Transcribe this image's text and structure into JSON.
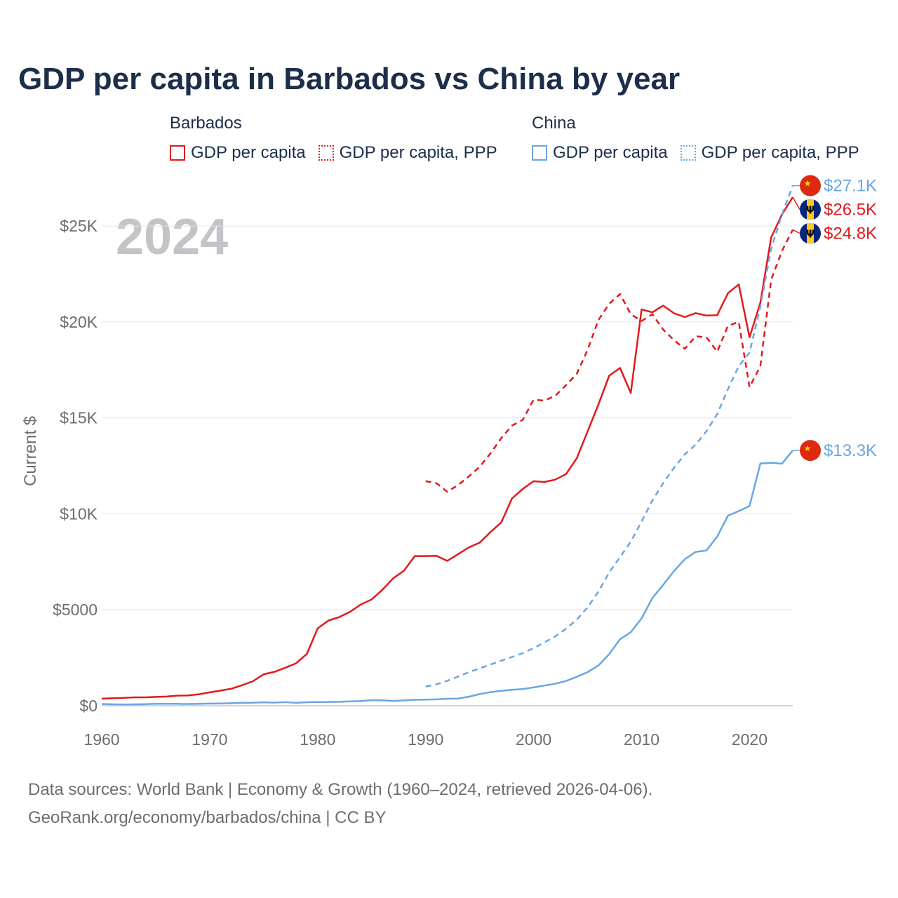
{
  "title": "GDP per capita in Barbados vs China by year",
  "legend": {
    "groups": [
      {
        "name": "Barbados",
        "items": [
          {
            "label": "GDP per capita",
            "style": "solid",
            "color": "#e3191c"
          },
          {
            "label": "GDP per capita, PPP",
            "style": "dotted",
            "color": "#e3191c"
          }
        ]
      },
      {
        "name": "China",
        "items": [
          {
            "label": "GDP per capita",
            "style": "solid",
            "color": "#6aa6e2"
          },
          {
            "label": "GDP per capita, PPP",
            "style": "dotted",
            "color": "#6aa6e2"
          }
        ]
      }
    ]
  },
  "chart_data": {
    "type": "line",
    "title": "GDP per capita in Barbados vs China by year",
    "year_label": "2024",
    "xlabel": "",
    "ylabel": "Current $",
    "xlim": [
      1960,
      2024
    ],
    "ylim": [
      0,
      28000
    ],
    "x_ticks": [
      1960,
      1970,
      1980,
      1990,
      2000,
      2010,
      2020
    ],
    "y_ticks": [
      {
        "value": 0,
        "label": "$0"
      },
      {
        "value": 5000,
        "label": "$5000"
      },
      {
        "value": 10000,
        "label": "$10K"
      },
      {
        "value": 15000,
        "label": "$15K"
      },
      {
        "value": 20000,
        "label": "$20K"
      },
      {
        "value": 25000,
        "label": "$25K"
      }
    ],
    "grid": true,
    "series": [
      {
        "name": "Barbados GDP per capita",
        "country": "Barbados",
        "dash": false,
        "color": "#e3191c",
        "start_year": 1960,
        "end_label": "$26.5K",
        "values": [
          370,
          390,
          410,
          440,
          440,
          460,
          480,
          530,
          540,
          600,
          700,
          790,
          890,
          1070,
          1280,
          1640,
          1770,
          1980,
          2210,
          2700,
          4030,
          4440,
          4620,
          4900,
          5280,
          5540,
          6050,
          6640,
          7040,
          7800,
          7800,
          7810,
          7550,
          7900,
          8250,
          8500,
          9050,
          9550,
          10800,
          11300,
          11700,
          11660,
          11780,
          12070,
          12900,
          14300,
          15700,
          17200,
          17600,
          16300,
          20650,
          20500,
          20850,
          20450,
          20250,
          20460,
          20330,
          20350,
          21500,
          21950,
          19200,
          21000,
          24400,
          25600,
          26500
        ]
      },
      {
        "name": "Barbados GDP per capita, PPP",
        "country": "Barbados",
        "dash": true,
        "color": "#e3191c",
        "start_year": 1990,
        "end_label": "$24.8K",
        "values": [
          11700,
          11600,
          11150,
          11500,
          11950,
          12450,
          13150,
          13950,
          14600,
          14900,
          15950,
          15900,
          16150,
          16700,
          17300,
          18550,
          20100,
          20950,
          21450,
          20400,
          20050,
          20400,
          19600,
          19050,
          18600,
          19250,
          19200,
          18450,
          19800,
          20000,
          16600,
          17700,
          22200,
          23700,
          24800
        ]
      },
      {
        "name": "China GDP per capita",
        "country": "China",
        "dash": false,
        "color": "#6aa6e2",
        "start_year": 1960,
        "end_label": "$13.3K",
        "values": [
          90,
          76,
          70,
          74,
          85,
          98,
          104,
          98,
          91,
          100,
          113,
          118,
          132,
          157,
          160,
          178,
          165,
          185,
          156,
          183,
          195,
          197,
          203,
          225,
          250,
          294,
          282,
          252,
          284,
          310,
          318,
          333,
          366,
          377,
          473,
          610,
          709,
          782,
          829,
          873,
          959,
          1053,
          1149,
          1289,
          1509,
          1753,
          2099,
          2694,
          3468,
          3832,
          4550,
          5614,
          6301,
          7020,
          7636,
          8016,
          8094,
          8817,
          9905,
          10144,
          10409,
          12618,
          12663,
          12614,
          13303
        ]
      },
      {
        "name": "China GDP per capita, PPP",
        "country": "China",
        "dash": true,
        "color": "#6aa6e2",
        "start_year": 1990,
        "end_label": "$27.1K",
        "values": [
          1000,
          1120,
          1300,
          1520,
          1750,
          1950,
          2150,
          2350,
          2540,
          2740,
          3000,
          3300,
          3620,
          4010,
          4490,
          5130,
          5950,
          6950,
          7750,
          8550,
          9600,
          10700,
          11600,
          12400,
          13100,
          13600,
          14300,
          15200,
          16500,
          17700,
          18400,
          20800,
          23800,
          25600,
          27100
        ]
      }
    ]
  },
  "sources": {
    "line1": "Data sources: World Bank | Economy & Growth (1960–2024, retrieved 2026-04-06).",
    "line2": "GeoRank.org/economy/barbados/china | CC BY"
  }
}
